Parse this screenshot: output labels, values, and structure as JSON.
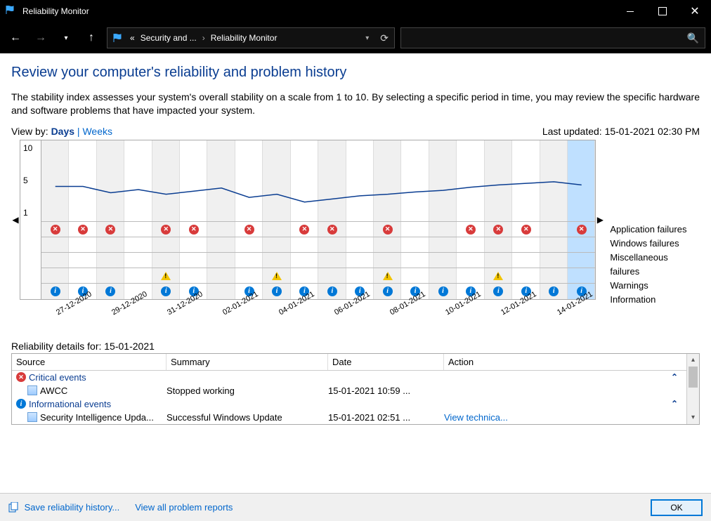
{
  "window": {
    "title": "Reliability Monitor"
  },
  "breadcrumb": {
    "prefix": "«",
    "seg1": "Security and ...",
    "seg2": "Reliability Monitor"
  },
  "page": {
    "heading": "Review your computer's reliability and problem history",
    "desc": "The stability index assesses your system's overall stability on a scale from 1 to 10. By selecting a specific period in time, you may review the specific hardware and software problems that have impacted your system.",
    "viewby_label": "View by:",
    "view_days": "Days",
    "view_weeks": "Weeks",
    "last_updated": "Last updated: 15-01-2021 02:30 PM"
  },
  "chart": {
    "y_ticks": [
      "10",
      "5",
      "1"
    ],
    "row_labels": [
      "Application failures",
      "Windows failures",
      "Miscellaneous failures",
      "Warnings",
      "Information"
    ],
    "n_cols": 20,
    "selected_col": 19,
    "stability_values": [
      5.0,
      5.0,
      4.2,
      4.6,
      4.0,
      4.4,
      4.8,
      3.6,
      4.0,
      3.0,
      3.4,
      3.8,
      4.0,
      4.3,
      4.5,
      4.9,
      5.2,
      5.4,
      5.6,
      5.2
    ],
    "date_labels": [
      "27-12-2020",
      "29-12-2020",
      "31-12-2020",
      "02-01-2021",
      "04-01-2021",
      "06-01-2021",
      "08-01-2021",
      "10-01-2021",
      "12-01-2021",
      "14-01-2021"
    ],
    "app_failures": [
      1,
      1,
      1,
      0,
      1,
      1,
      0,
      1,
      0,
      1,
      1,
      0,
      1,
      0,
      0,
      1,
      1,
      1,
      0,
      1
    ],
    "warnings": [
      0,
      0,
      0,
      0,
      1,
      0,
      0,
      0,
      1,
      0,
      0,
      0,
      1,
      0,
      0,
      0,
      1,
      0,
      0,
      0
    ],
    "information": [
      1,
      1,
      1,
      0,
      1,
      1,
      0,
      1,
      1,
      1,
      1,
      1,
      1,
      1,
      1,
      1,
      1,
      1,
      1,
      1
    ],
    "colors": {
      "line": "#0a3d91",
      "critical": "#d83b3b",
      "info": "#0078d7",
      "warning": "#f2c400",
      "selected_bg": "#bfe0ff",
      "alt_bg": "#f0f0f0"
    }
  },
  "details": {
    "caption": "Reliability details for: 15-01-2021",
    "columns": {
      "source": "Source",
      "summary": "Summary",
      "date": "Date",
      "action": "Action"
    },
    "groups": [
      {
        "label": "Critical events",
        "icon": "x",
        "rows": [
          {
            "source": "AWCC",
            "summary": "Stopped working",
            "date": "15-01-2021 10:59 ...",
            "action": ""
          }
        ]
      },
      {
        "label": "Informational events",
        "icon": "i",
        "rows": [
          {
            "source": "Security Intelligence Upda...",
            "summary": "Successful Windows Update",
            "date": "15-01-2021 02:51 ...",
            "action": "View technica..."
          }
        ]
      }
    ]
  },
  "footer": {
    "save": "Save reliability history...",
    "viewall": "View all problem reports",
    "ok": "OK"
  }
}
